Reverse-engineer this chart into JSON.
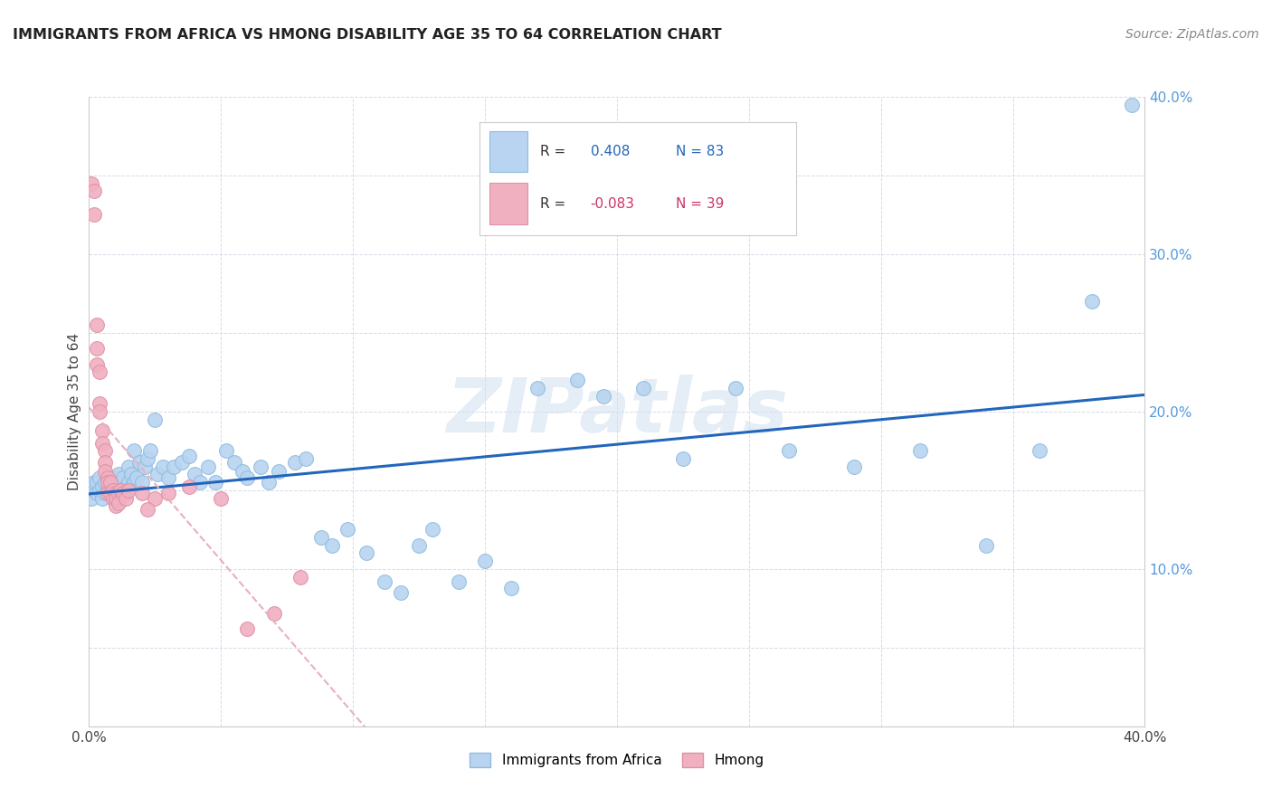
{
  "title": "IMMIGRANTS FROM AFRICA VS HMONG DISABILITY AGE 35 TO 64 CORRELATION CHART",
  "source": "Source: ZipAtlas.com",
  "ylabel": "Disability Age 35 to 64",
  "xlim": [
    0.0,
    0.4
  ],
  "ylim": [
    0.0,
    0.4
  ],
  "xticks": [
    0.0,
    0.05,
    0.1,
    0.15,
    0.2,
    0.25,
    0.3,
    0.35,
    0.4
  ],
  "yticks": [
    0.0,
    0.05,
    0.1,
    0.15,
    0.2,
    0.25,
    0.3,
    0.35,
    0.4
  ],
  "africa_color": "#b8d4f0",
  "hmong_color": "#f0b0c0",
  "africa_line_color": "#2266bb",
  "hmong_line_color": "#e8b0c0",
  "watermark": "ZIPatlas",
  "background_color": "#ffffff",
  "grid_color": "#d4dce8",
  "right_tick_color": "#5599dd",
  "africa_scatter_x": [
    0.001,
    0.002,
    0.002,
    0.003,
    0.003,
    0.004,
    0.004,
    0.005,
    0.005,
    0.006,
    0.006,
    0.007,
    0.007,
    0.008,
    0.008,
    0.009,
    0.009,
    0.01,
    0.01,
    0.011,
    0.011,
    0.012,
    0.012,
    0.013,
    0.013,
    0.014,
    0.014,
    0.015,
    0.015,
    0.016,
    0.016,
    0.017,
    0.017,
    0.018,
    0.019,
    0.02,
    0.021,
    0.022,
    0.023,
    0.025,
    0.026,
    0.028,
    0.03,
    0.032,
    0.035,
    0.038,
    0.04,
    0.042,
    0.045,
    0.048,
    0.052,
    0.055,
    0.058,
    0.06,
    0.065,
    0.068,
    0.072,
    0.078,
    0.082,
    0.088,
    0.092,
    0.098,
    0.105,
    0.112,
    0.118,
    0.125,
    0.13,
    0.14,
    0.15,
    0.16,
    0.17,
    0.185,
    0.195,
    0.21,
    0.225,
    0.245,
    0.265,
    0.29,
    0.315,
    0.34,
    0.36,
    0.38,
    0.395
  ],
  "africa_scatter_y": [
    0.145,
    0.15,
    0.155,
    0.148,
    0.155,
    0.15,
    0.158,
    0.145,
    0.152,
    0.148,
    0.155,
    0.15,
    0.155,
    0.148,
    0.158,
    0.145,
    0.155,
    0.15,
    0.158,
    0.152,
    0.16,
    0.155,
    0.148,
    0.155,
    0.158,
    0.152,
    0.148,
    0.165,
    0.155,
    0.16,
    0.152,
    0.155,
    0.175,
    0.158,
    0.168,
    0.155,
    0.165,
    0.17,
    0.175,
    0.195,
    0.16,
    0.165,
    0.158,
    0.165,
    0.168,
    0.172,
    0.16,
    0.155,
    0.165,
    0.155,
    0.175,
    0.168,
    0.162,
    0.158,
    0.165,
    0.155,
    0.162,
    0.168,
    0.17,
    0.12,
    0.115,
    0.125,
    0.11,
    0.092,
    0.085,
    0.115,
    0.125,
    0.092,
    0.105,
    0.088,
    0.215,
    0.22,
    0.21,
    0.215,
    0.17,
    0.215,
    0.175,
    0.165,
    0.175,
    0.115,
    0.175,
    0.27,
    0.395
  ],
  "hmong_scatter_x": [
    0.001,
    0.002,
    0.002,
    0.003,
    0.003,
    0.003,
    0.004,
    0.004,
    0.004,
    0.005,
    0.005,
    0.006,
    0.006,
    0.006,
    0.007,
    0.007,
    0.007,
    0.008,
    0.008,
    0.009,
    0.009,
    0.01,
    0.01,
    0.01,
    0.011,
    0.011,
    0.012,
    0.013,
    0.014,
    0.015,
    0.02,
    0.025,
    0.03,
    0.038,
    0.05,
    0.06,
    0.07,
    0.08,
    0.022
  ],
  "hmong_scatter_y": [
    0.345,
    0.34,
    0.325,
    0.255,
    0.24,
    0.23,
    0.225,
    0.205,
    0.2,
    0.188,
    0.18,
    0.175,
    0.168,
    0.162,
    0.158,
    0.155,
    0.148,
    0.155,
    0.148,
    0.15,
    0.145,
    0.148,
    0.14,
    0.145,
    0.148,
    0.142,
    0.15,
    0.148,
    0.145,
    0.15,
    0.148,
    0.145,
    0.148,
    0.152,
    0.145,
    0.062,
    0.072,
    0.095,
    0.138
  ]
}
